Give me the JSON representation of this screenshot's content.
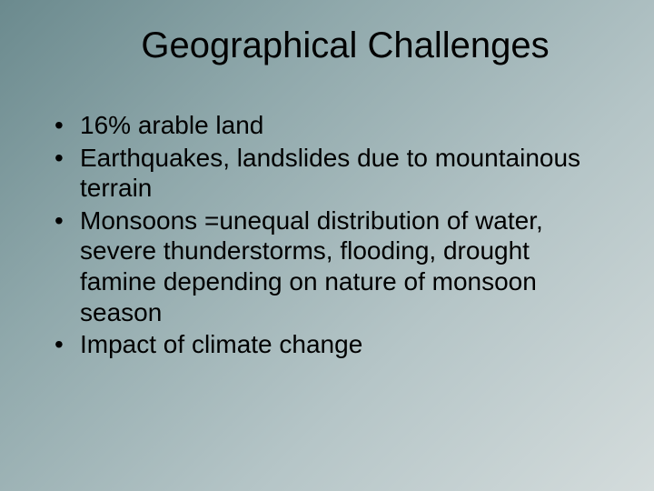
{
  "slide": {
    "title": "Geographical Challenges",
    "bullets": [
      "16% arable land",
      "Earthquakes, landslides due to mountainous terrain",
      "Monsoons =unequal distribution of water, severe thunderstorms, flooding, drought famine depending on nature of monsoon season",
      "Impact of climate change"
    ],
    "background_gradient": [
      "#6b8a8e",
      "#8fa8ab",
      "#b5c5c7",
      "#d4dcdc"
    ],
    "text_color": "#000000",
    "title_fontsize": 40,
    "body_fontsize": 28,
    "font_family": "Arial"
  }
}
